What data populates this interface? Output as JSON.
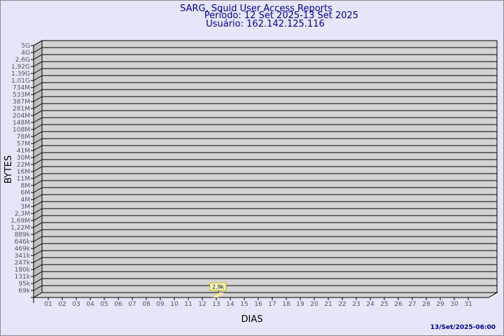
{
  "chart_data": {
    "type": "bar",
    "title": "SARG, Squid User Access Reports",
    "subtitle_period": "Período: 12 Set 2025-13 Set 2025",
    "subtitle_user": "Usuário: 162.142.125.116",
    "xlabel": "DIAS",
    "ylabel": "BYTES",
    "y_scale": "log",
    "y_ticks": [
      "5G",
      "4G",
      "2,6G",
      "1,92G",
      "1,39G",
      "1,01G",
      "734M",
      "533M",
      "387M",
      "281M",
      "204M",
      "148M",
      "108M",
      "78M",
      "57M",
      "41M",
      "30M",
      "22M",
      "16M",
      "11M",
      "8M",
      "6M",
      "4M",
      "3M",
      "2,3M",
      "1,69M",
      "1,22M",
      "889k",
      "646k",
      "469k",
      "341k",
      "247k",
      "180k",
      "131k",
      "95k",
      "69k"
    ],
    "categories": [
      "01",
      "02",
      "03",
      "04",
      "05",
      "06",
      "07",
      "08",
      "09",
      "10",
      "11",
      "12",
      "13",
      "14",
      "15",
      "16",
      "17",
      "18",
      "19",
      "20",
      "21",
      "22",
      "23",
      "24",
      "25",
      "26",
      "27",
      "28",
      "29",
      "30",
      "31"
    ],
    "values": [
      0,
      0,
      0,
      0,
      0,
      0,
      0,
      0,
      0,
      0,
      0,
      0,
      2900,
      0,
      0,
      0,
      0,
      0,
      0,
      0,
      0,
      0,
      0,
      0,
      0,
      0,
      0,
      0,
      0,
      0,
      0
    ],
    "data_labels": [
      {
        "category": "13",
        "label": "2,9k"
      }
    ],
    "grid": true,
    "colors": {
      "background": "#e6e6fa",
      "plot": "#d3d3d3",
      "bar": "#f5e6a0",
      "text": "#00008b",
      "label_bg": "#fafac8"
    }
  },
  "footer": {
    "timestamp": "13/Set/2025-06:00"
  }
}
